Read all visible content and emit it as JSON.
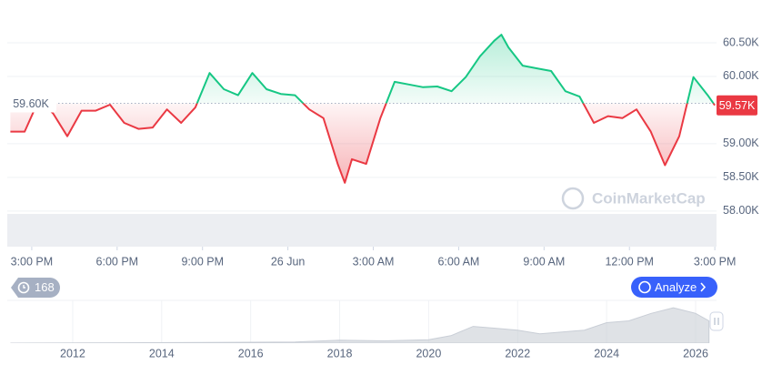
{
  "chart_data": [
    {
      "type": "line",
      "x": [
        -0.75,
        -0.25,
        0.25,
        0.75,
        1.25,
        1.75,
        2.25,
        2.75,
        3.25,
        3.75,
        4.25,
        4.75,
        5.25,
        5.75,
        6.25,
        6.75,
        7.25,
        7.75,
        8.25,
        8.75,
        9.25,
        9.75,
        10.25,
        10.75,
        11.0,
        11.25,
        11.75,
        12.25,
        12.75,
        13.25,
        13.75,
        14.25,
        14.75,
        15.25,
        15.75,
        16.25,
        16.5,
        16.75,
        17.25,
        17.75,
        18.25,
        18.75,
        19.25,
        19.75,
        20.25,
        20.75,
        21.25,
        21.75,
        22.25,
        22.75,
        23.25,
        23.75,
        24.0
      ],
      "values": [
        59180,
        59180,
        59650,
        59450,
        59110,
        59490,
        59490,
        59580,
        59310,
        59220,
        59240,
        59510,
        59310,
        59540,
        60050,
        59810,
        59720,
        60050,
        59810,
        59740,
        59720,
        59510,
        59380,
        58700,
        58420,
        58770,
        58700,
        59380,
        59920,
        59880,
        59840,
        59850,
        59780,
        59990,
        60300,
        60530,
        60620,
        60430,
        60160,
        60120,
        60080,
        59780,
        59700,
        59310,
        59410,
        59380,
        59510,
        59180,
        58680,
        59110,
        59990,
        59720,
        59570
      ],
      "xlim": [
        -0.86,
        24.06
      ],
      "ylim": [
        57470,
        61000
      ],
      "xticks": [
        {
          "value": 0,
          "label": "3:00 PM"
        },
        {
          "value": 3,
          "label": "6:00 PM"
        },
        {
          "value": 6,
          "label": "9:00 PM"
        },
        {
          "value": 9,
          "label": "26 Jun"
        },
        {
          "value": 12,
          "label": "3:00 AM"
        },
        {
          "value": 15,
          "label": "6:00 AM"
        },
        {
          "value": 18,
          "label": "9:00 AM"
        },
        {
          "value": 21,
          "label": "12:00 PM"
        },
        {
          "value": 24,
          "label": "3:00 PM"
        }
      ],
      "yticks": [
        {
          "value": 58000,
          "label": "58.00K"
        },
        {
          "value": 58500,
          "label": "58.50K"
        },
        {
          "value": 59000,
          "label": "59.00K"
        },
        {
          "value": 60000,
          "label": "60.00K"
        },
        {
          "value": 60500,
          "label": "60.50K"
        }
      ],
      "baseline": {
        "value": 59600,
        "label": "59.60K"
      },
      "current": {
        "value": 59570,
        "label": "59.57K"
      },
      "up_color": "#16c784",
      "down_color": "#ea3943",
      "grid": true
    },
    {
      "type": "area",
      "x": [
        2010.6,
        2013,
        2015,
        2017,
        2018,
        2019,
        2020,
        2020.5,
        2021,
        2021.5,
        2022,
        2022.5,
        2023,
        2023.5,
        2024,
        2024.5,
        2025,
        2025.5,
        2026,
        2026.3
      ],
      "values": [
        0,
        1000,
        2000,
        3000,
        8000,
        6000,
        9000,
        20000,
        45000,
        40000,
        35000,
        25000,
        30000,
        35000,
        55000,
        60000,
        80000,
        95000,
        80000,
        60000
      ],
      "xlim": [
        2010.53,
        2026.47
      ],
      "ylim": [
        0,
        110000
      ],
      "xticks": [
        2012,
        2014,
        2016,
        2018,
        2020,
        2022,
        2024,
        2026
      ],
      "color": "#c9ced6"
    }
  ],
  "ui": {
    "badge": 168,
    "analyze_button": "Analyze",
    "watermark": "CoinMarketCap"
  }
}
